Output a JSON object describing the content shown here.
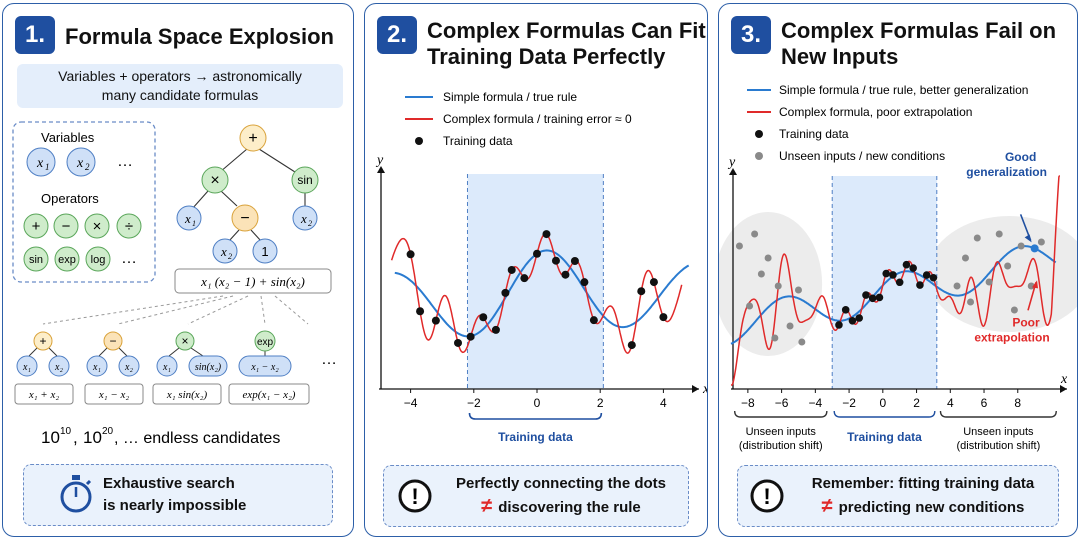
{
  "panel1": {
    "number": "1.",
    "title": "Formula Space Explosion",
    "subtitle_line1": "Variables + operators → astronomically",
    "subtitle_line2": "many candidate formulas",
    "variables_label": "Variables",
    "variables": [
      "x",
      "x"
    ],
    "variable_subscripts": [
      "1",
      "2"
    ],
    "ellipsis": "…",
    "operators_label": "Operators",
    "operators": [
      "+",
      "−",
      "×",
      "÷",
      "sin",
      "exp",
      "log"
    ],
    "tree": {
      "root": "+",
      "times": "×",
      "sin": "sin",
      "minus": "−",
      "one": "1"
    },
    "tree_formula": "x₁ (x₂ − 1) + sin(x₂)",
    "small_trees": [
      {
        "op": "+",
        "left": "x₁",
        "right": "x₂",
        "formula": "x₁ + x₂"
      },
      {
        "op": "−",
        "left": "x₁",
        "right": "x₂",
        "formula": "x₁ − x₂"
      },
      {
        "op": "×",
        "left": "x₁",
        "right": "sin(x₂)",
        "formula": "x₁ sin(x₂)"
      },
      {
        "op": "exp",
        "child": "x₁ − x₂",
        "formula": "exp(x₁ − x₂)"
      }
    ],
    "candidates_a": "10",
    "candidates_a_exp": "10",
    "candidates_b": "10",
    "candidates_b_exp": "20",
    "candidates_rest": ", …  endless candidates",
    "bottom_line1": "Exhaustive search",
    "bottom_line2": "is nearly impossible"
  },
  "panel2": {
    "number": "2.",
    "title_line1": "Complex Formulas Can Fit",
    "title_line2": "Training Data Perfectly",
    "legend": [
      {
        "label": "Simple formula / true rule",
        "color": "#2a7bd0"
      },
      {
        "label": "Complex formula / training error ≈ 0",
        "color": "#e02a2a"
      },
      {
        "label": "Training data",
        "color": "#111111"
      }
    ],
    "xlabel": "x",
    "ylabel": "y",
    "xticks": [
      "−4",
      "−2",
      "0",
      "2",
      "4"
    ],
    "region_label": "Training data",
    "bottom_line1": "Perfectly connecting the dots",
    "bottom_line2": "discovering the rule",
    "neq": "≠",
    "alert_symbol": "!"
  },
  "panel3": {
    "number": "3.",
    "title_line1": "Complex Formulas Fail on",
    "title_line2": "New Inputs",
    "legend": [
      {
        "label": "Simple formula / true rule, better generalization",
        "color": "#2a7bd0"
      },
      {
        "label": "Complex formula, poor extrapolation",
        "color": "#e02a2a"
      },
      {
        "label": "Training data",
        "color": "#111111"
      },
      {
        "label": "Unseen inputs / new conditions",
        "color": "#8a8a8a"
      }
    ],
    "xlabel": "x",
    "ylabel": "y",
    "xticks": [
      "−8",
      "−6",
      "−4",
      "−2",
      "0",
      "2",
      "4",
      "6",
      "8"
    ],
    "good_label_line1": "Good",
    "good_label_line2": "generalization",
    "poor_label_line1": "Poor",
    "poor_label_line2": "extrapolation",
    "left_region_line1": "Unseen inputs",
    "left_region_line2": "(distribution shift)",
    "mid_region": "Training data",
    "right_region_line1": "Unseen inputs",
    "right_region_line2": "(distribution shift)",
    "bottom_line1": "Remember: fitting training data",
    "bottom_line2": "predicting new conditions",
    "neq": "≠",
    "alert_symbol": "!"
  },
  "colors": {
    "accent": "#1f4fa0",
    "blue_curve": "#2a7bd0",
    "red_curve": "#e02a2a",
    "train_region": "#dceafb",
    "var_node": "#cfe0f7",
    "op_node": "#cfeccb",
    "minus_node": "#fbe3b8",
    "root_node": "#fdeec9"
  }
}
